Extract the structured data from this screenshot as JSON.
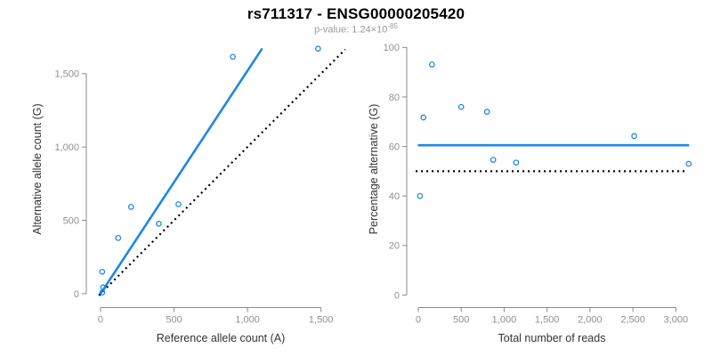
{
  "header": {
    "title": "rs711317 - ENSG00000205420",
    "pvalue_text": "p-value: 1.24×10",
    "pvalue_exponent": "-85"
  },
  "colors": {
    "accent_blue": "#1E87E8",
    "line_black": "#000000",
    "axis_gray": "#8a8a8a",
    "tick_label_gray": "#909090",
    "axis_title_color": "#333333",
    "subtitle_gray": "#9a9a9a"
  },
  "chart_data": [
    {
      "name": "allele-count-scatter",
      "type": "scatter",
      "title": "",
      "xlabel": "Reference allele count (A)",
      "ylabel": "Alternative allele count (G)",
      "xlim": [
        -109,
        1708
      ],
      "ylim": [
        -79,
        1711
      ],
      "xticks": [
        0,
        500,
        1000,
        1500
      ],
      "xtick_labels": [
        "0",
        "500",
        "1,000",
        "1,500"
      ],
      "yticks": [
        0,
        500,
        1000,
        1500
      ],
      "ytick_labels": [
        "0",
        "500",
        "1,000",
        "1,500"
      ],
      "grid": false,
      "legend": "none",
      "points": [
        [
          12,
          8
        ],
        [
          17,
          43
        ],
        [
          11,
          149
        ],
        [
          120,
          380
        ],
        [
          208,
          592
        ],
        [
          396,
          477
        ],
        [
          530,
          610
        ],
        [
          900,
          1615
        ],
        [
          1480,
          1670
        ]
      ],
      "lines": [
        {
          "role": "fit-line",
          "style": "solid",
          "color_key": "accent_blue",
          "x1": -10,
          "y1": -15,
          "x2": 1100,
          "y2": 1672
        },
        {
          "role": "identity-line",
          "style": "dotted",
          "color_key": "line_black",
          "x1": -10,
          "y1": -10,
          "x2": 1665,
          "y2": 1665
        }
      ]
    },
    {
      "name": "percentage-alternative-scatter",
      "type": "scatter",
      "title": "",
      "xlabel": "Total number of reads",
      "ylabel": "Percentage alternative (G)",
      "xlim": [
        -207,
        3162
      ],
      "ylim": [
        -4.3,
        101.9
      ],
      "xticks": [
        0,
        500,
        1000,
        1500,
        2000,
        2500,
        3000
      ],
      "xtick_labels": [
        "0",
        "500",
        "1,000",
        "1,500",
        "2,000",
        "2,500",
        "3,000"
      ],
      "yticks": [
        0,
        20,
        40,
        60,
        80,
        100
      ],
      "ytick_labels": [
        "0",
        "20",
        "40",
        "60",
        "80",
        "100"
      ],
      "grid": false,
      "legend": "none",
      "points": [
        [
          20,
          40.0
        ],
        [
          60,
          71.7
        ],
        [
          160,
          93.1
        ],
        [
          500,
          76.0
        ],
        [
          800,
          74.0
        ],
        [
          873,
          54.6
        ],
        [
          1140,
          53.5
        ],
        [
          2515,
          64.2
        ],
        [
          3150,
          53.0
        ]
      ],
      "lines": [
        {
          "role": "mean-percentage-line",
          "style": "solid",
          "color_key": "accent_blue",
          "x1": -5,
          "y1": 60.5,
          "x2": 3155,
          "y2": 60.5
        },
        {
          "role": "fifty-percent-line",
          "style": "dotted",
          "color_key": "line_black",
          "x1": -30,
          "y1": 50,
          "x2": 3100,
          "y2": 50
        }
      ]
    }
  ]
}
